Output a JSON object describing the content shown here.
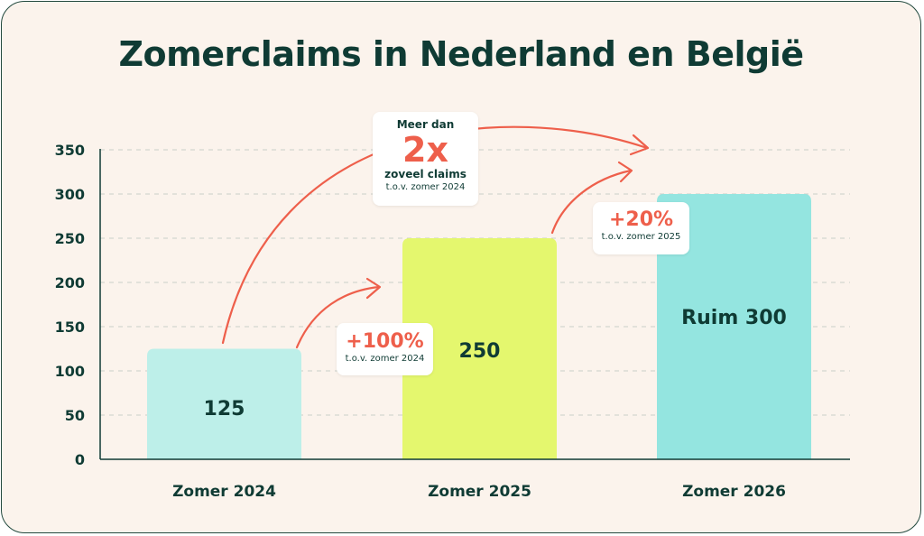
{
  "title": "Zomerclaims in Nederland en België",
  "colors": {
    "background": "#fbf3ec",
    "text": "#0f3b34",
    "accent": "#ee5f4b",
    "bar_2024": "#bdefe9",
    "bar_2025": "#e4f76e",
    "bar_2026": "#94e5e0"
  },
  "chart_data": {
    "type": "bar",
    "title": "Zomerclaims in Nederland en België",
    "categories": [
      "Zomer 2024",
      "Zomer 2025",
      "Zomer 2026"
    ],
    "values": [
      125,
      250,
      300
    ],
    "bar_labels": [
      "125",
      "250",
      "Ruim 300"
    ],
    "yticks": [
      "0",
      "50",
      "100",
      "150",
      "200",
      "250",
      "300",
      "350"
    ],
    "ylim": [
      0,
      350
    ],
    "grid": true,
    "xlabel": "",
    "ylabel": ""
  },
  "callouts": {
    "double": {
      "top": "Meer dan",
      "big": "2x",
      "bottom": "zoveel claims",
      "sub": "t.o.v. zomer 2024"
    },
    "plus100": {
      "big": "+100%",
      "sub": "t.o.v. zomer 2024"
    },
    "plus20": {
      "big": "+20%",
      "sub": "t.o.v. zomer 2025"
    }
  }
}
